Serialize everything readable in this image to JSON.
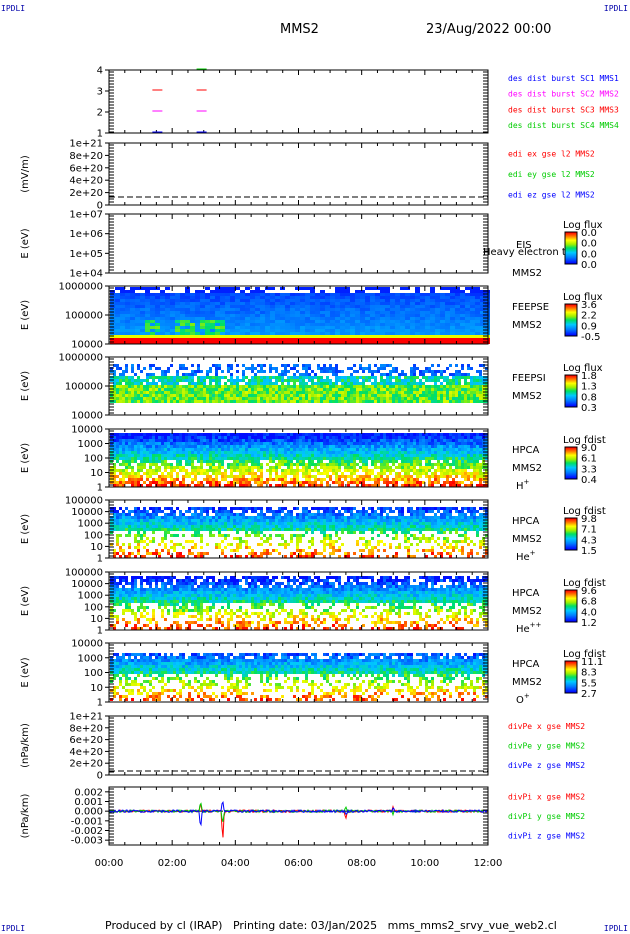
{
  "header": {
    "corner_left_top": "IPDLI",
    "corner_right_top": "IPDLI",
    "corner_left_bottom": "IPDLI",
    "corner_right_bottom": "IPDLI",
    "spacecraft": "MMS2",
    "date": "23/Aug/2022 00:00"
  },
  "footer": "Produced by cl (IRAP)   Printing date: 03/Jan/2025   mms_mms2_srvy_vue_web2.cl",
  "time_axis": [
    "00:00",
    "02:00",
    "04:00",
    "06:00",
    "08:00",
    "10:00",
    "12:00"
  ],
  "colors": {
    "c1": "#0000ff",
    "c2": "#ff00ff",
    "c3": "#ff0000",
    "c4": "#00cc00"
  },
  "chart_data": [
    {
      "type": "scatter",
      "id": "burst",
      "ylabel": "",
      "yticks": [
        "1",
        "2",
        "3",
        "4"
      ],
      "legend": [
        {
          "text": "des dist burst SC1 MMS1",
          "color": "#0000ff"
        },
        {
          "text": "des dist burst SC2 MMS2",
          "color": "#ff00ff"
        },
        {
          "text": "des dist burst SC3 MMS3",
          "color": "#ff0000"
        },
        {
          "text": "des dist burst SC4 MMS4",
          "color": "#00cc00"
        }
      ],
      "bursts": [
        {
          "sc": 1,
          "t": [
            1.5,
            2.9
          ]
        },
        {
          "sc": 2,
          "t": [
            1.5,
            2.9
          ]
        },
        {
          "sc": 3,
          "t": [
            1.5,
            2.9
          ]
        },
        {
          "sc": 4,
          "t": [
            2.9
          ]
        }
      ]
    },
    {
      "type": "line",
      "id": "edi",
      "ylabel": "(mV/m)",
      "yticks": [
        "0",
        "2e+20",
        "4e+20",
        "6e+20",
        "8e+20",
        "1e+21"
      ],
      "legend": [
        {
          "text": "edi ex gse l2 MMS2",
          "color": "#ff0000"
        },
        {
          "text": "edi ey gse l2 MMS2",
          "color": "#00cc00"
        },
        {
          "text": "edi ez gse l2 MMS2",
          "color": "#0000ff"
        }
      ]
    },
    {
      "type": "heatmap",
      "id": "eis",
      "ylabel": "E (eV)",
      "yticks": [
        "1e+04",
        "1e+05",
        "1e+06",
        "1e+07"
      ],
      "labels": [
        "EIS",
        "MMS2"
      ],
      "overlay": "Heavy electron to",
      "cbar_title": "Log flux",
      "cbar_ticks": [
        "0.0",
        "0.0",
        "0.0",
        "0.0"
      ]
    },
    {
      "type": "heatmap",
      "id": "feepse",
      "ylabel": "E (eV)",
      "yticks": [
        "10000",
        "100000",
        "1000000"
      ],
      "labels": [
        "FEEPSE",
        "MMS2"
      ],
      "cbar_title": "Log flux",
      "cbar_ticks": [
        "3.6",
        "2.2",
        "0.9",
        "-0.5"
      ]
    },
    {
      "type": "heatmap",
      "id": "feepsi",
      "ylabel": "E (eV)",
      "yticks": [
        "10000",
        "100000",
        "1000000"
      ],
      "labels": [
        "FEEPSI",
        "MMS2"
      ],
      "cbar_title": "Log flux",
      "cbar_ticks": [
        "1.8",
        "1.3",
        "0.8",
        "0.3"
      ]
    },
    {
      "type": "heatmap",
      "id": "hpca_h",
      "ylabel": "E (eV)",
      "yticks": [
        "1",
        "10",
        "100",
        "1000",
        "10000"
      ],
      "labels": [
        "HPCA",
        "MMS2"
      ],
      "species": "H",
      "charge": "+",
      "cbar_title": "Log fdist",
      "cbar_ticks": [
        "9.0",
        "6.1",
        "3.3",
        "0.4"
      ]
    },
    {
      "type": "heatmap",
      "id": "hpca_he",
      "ylabel": "E (eV)",
      "yticks": [
        "1",
        "10",
        "100",
        "1000",
        "10000",
        "100000"
      ],
      "labels": [
        "HPCA",
        "MMS2"
      ],
      "species": "He",
      "charge": "+",
      "cbar_title": "Log fdist",
      "cbar_ticks": [
        "9.8",
        "7.1",
        "4.3",
        "1.5"
      ]
    },
    {
      "type": "heatmap",
      "id": "hpca_he2",
      "ylabel": "E (eV)",
      "yticks": [
        "1",
        "10",
        "100",
        "1000",
        "10000",
        "100000"
      ],
      "labels": [
        "HPCA",
        "MMS2"
      ],
      "species": "He",
      "charge": "++",
      "cbar_title": "Log fdist",
      "cbar_ticks": [
        "9.6",
        "6.8",
        "4.0",
        "1.2"
      ]
    },
    {
      "type": "heatmap",
      "id": "hpca_o",
      "ylabel": "E (eV)",
      "yticks": [
        "1",
        "10",
        "100",
        "1000",
        "10000"
      ],
      "labels": [
        "HPCA",
        "MMS2"
      ],
      "species": "O",
      "charge": "+",
      "cbar_title": "Log fdist",
      "cbar_ticks": [
        "11.1",
        "8.3",
        "5.5",
        "2.7"
      ]
    },
    {
      "type": "line",
      "id": "divpe",
      "ylabel": "(nPa/km)",
      "yticks": [
        "0",
        "2e+20",
        "4e+20",
        "6e+20",
        "8e+20",
        "1e+21"
      ],
      "legend": [
        {
          "text": "divPe x gse MMS2",
          "color": "#ff0000"
        },
        {
          "text": "divPe y gse MMS2",
          "color": "#00cc00"
        },
        {
          "text": "divPe z gse MMS2",
          "color": "#0000ff"
        }
      ]
    },
    {
      "type": "line",
      "id": "divpi",
      "ylabel": "(nPa/km)",
      "yticks": [
        "-0.003",
        "-0.002",
        "-0.001",
        "0.000",
        "0.001",
        "0.002"
      ],
      "ylim": [
        -0.0035,
        0.0025
      ],
      "legend": [
        {
          "text": "divPi x gse MMS2",
          "color": "#ff0000"
        },
        {
          "text": "divPi y gse MMS2",
          "color": "#00cc00"
        },
        {
          "text": "divPi z gse MMS2",
          "color": "#0000ff"
        }
      ],
      "spikes": [
        {
          "t": 2.9,
          "x": 0.0008,
          "y": 0.0012,
          "z": -0.0018
        },
        {
          "t": 3.6,
          "x": -0.0032,
          "y": -0.0012,
          "z": 0.0012
        },
        {
          "t": 7.5,
          "x": -0.0008,
          "y": 0.0004,
          "z": -0.0004
        },
        {
          "t": 9.0,
          "x": 0.0004,
          "y": -0.0003,
          "z": 0.0003
        }
      ]
    }
  ]
}
